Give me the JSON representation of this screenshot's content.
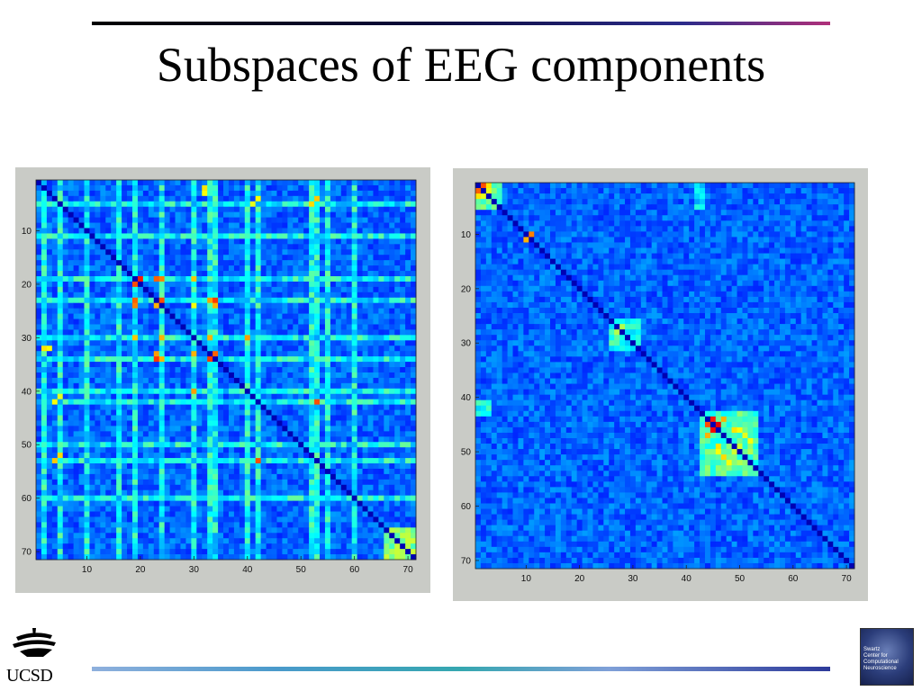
{
  "title": "Subspaces of EEG components",
  "logos": {
    "left_text": "UCSD",
    "right_lines": [
      "Swartz",
      "Center for",
      "Computational",
      "Neuroscience"
    ]
  },
  "colormap": [
    "#00008f",
    "#0000ff",
    "#0080ff",
    "#00ffff",
    "#80ff80",
    "#ffff00",
    "#ff8000",
    "#ff0000",
    "#800000"
  ],
  "chart_data": [
    {
      "type": "heatmap",
      "size": 71,
      "x_ticks": [
        10,
        20,
        30,
        40,
        50,
        60,
        70
      ],
      "y_ticks": [
        10,
        20,
        30,
        40,
        50,
        60,
        70
      ],
      "background_level": 0.22,
      "diagonal_level": 0.04,
      "blocks": [
        {
          "r0": 66,
          "r1": 71,
          "c0": 66,
          "c1": 71,
          "v": 0.5
        }
      ],
      "hotspots": [
        {
          "r": 19,
          "c": 19,
          "v": 0.9
        },
        {
          "r": 19,
          "c": 20,
          "v": 0.85
        },
        {
          "r": 20,
          "c": 19,
          "v": 0.8
        },
        {
          "r": 19,
          "c": 24,
          "v": 0.75
        },
        {
          "r": 23,
          "c": 19,
          "v": 0.78
        },
        {
          "r": 23,
          "c": 24,
          "v": 0.8
        },
        {
          "r": 24,
          "c": 23,
          "v": 0.7
        },
        {
          "r": 23,
          "c": 34,
          "v": 0.82
        },
        {
          "r": 23,
          "c": 33,
          "v": 0.72
        },
        {
          "r": 34,
          "c": 34,
          "v": 0.92
        },
        {
          "r": 34,
          "c": 33,
          "v": 0.82
        },
        {
          "r": 33,
          "c": 34,
          "v": 0.78
        },
        {
          "r": 30,
          "c": 33,
          "v": 0.7
        },
        {
          "r": 30,
          "c": 30,
          "v": 0.7
        },
        {
          "r": 30,
          "c": 24,
          "v": 0.7
        },
        {
          "r": 30,
          "c": 19,
          "v": 0.68
        },
        {
          "r": 30,
          "c": 40,
          "v": 0.72
        },
        {
          "r": 40,
          "c": 30,
          "v": 0.72
        },
        {
          "r": 42,
          "c": 53,
          "v": 0.8
        },
        {
          "r": 53,
          "c": 42,
          "v": 0.8
        },
        {
          "r": 52,
          "c": 52,
          "v": 0.7
        },
        {
          "r": 53,
          "c": 53,
          "v": 0.78
        },
        {
          "r": 53,
          "c": 4,
          "v": 0.68
        },
        {
          "r": 42,
          "c": 4,
          "v": 0.62
        },
        {
          "r": 32,
          "c": 2,
          "v": 0.65
        },
        {
          "r": 5,
          "c": 52,
          "v": 0.66
        },
        {
          "r": 5,
          "c": 41,
          "v": 0.6
        },
        {
          "r": 3,
          "c": 32,
          "v": 0.62
        },
        {
          "r": 34,
          "c": 24,
          "v": 0.7
        },
        {
          "r": 24,
          "c": 30,
          "v": 0.62
        }
      ],
      "grid_rows": [
        5,
        11,
        19,
        23,
        30,
        34,
        40,
        42,
        50,
        53,
        60
      ],
      "grid_cols": [
        2,
        5,
        10,
        16,
        19,
        24,
        30,
        33,
        34,
        40,
        42,
        52,
        53,
        55,
        60
      ],
      "grid_level": 0.4
    },
    {
      "type": "heatmap",
      "size": 71,
      "x_ticks": [
        10,
        20,
        30,
        40,
        50,
        60,
        70
      ],
      "y_ticks": [
        10,
        20,
        30,
        40,
        50,
        60,
        70
      ],
      "background_level": 0.22,
      "diagonal_level": 0.04,
      "blocks": [
        {
          "r0": 1,
          "r1": 5,
          "c0": 1,
          "c1": 5,
          "v": 0.45
        },
        {
          "r0": 26,
          "r1": 31,
          "c0": 26,
          "c1": 31,
          "v": 0.4
        },
        {
          "r0": 43,
          "r1": 54,
          "c0": 43,
          "c1": 53,
          "v": 0.45
        },
        {
          "r0": 41,
          "r1": 43,
          "c0": 1,
          "c1": 3,
          "v": 0.38
        },
        {
          "r0": 1,
          "r1": 5,
          "c0": 42,
          "c1": 43,
          "v": 0.35
        }
      ],
      "hotspots": [
        {
          "r": 1,
          "c": 1,
          "v": 0.9
        },
        {
          "r": 1,
          "c": 2,
          "v": 0.8
        },
        {
          "r": 2,
          "c": 1,
          "v": 0.78
        },
        {
          "r": 2,
          "c": 2,
          "v": 0.9
        },
        {
          "r": 1,
          "c": 3,
          "v": 0.65
        },
        {
          "r": 3,
          "c": 1,
          "v": 0.65
        },
        {
          "r": 3,
          "c": 2,
          "v": 0.6
        },
        {
          "r": 2,
          "c": 3,
          "v": 0.6
        },
        {
          "r": 10,
          "c": 11,
          "v": 0.75
        },
        {
          "r": 11,
          "c": 10,
          "v": 0.7
        },
        {
          "r": 27,
          "c": 27,
          "v": 0.6
        },
        {
          "r": 28,
          "c": 27,
          "v": 0.55
        },
        {
          "r": 44,
          "c": 44,
          "v": 0.9
        },
        {
          "r": 44,
          "c": 45,
          "v": 0.85
        },
        {
          "r": 45,
          "c": 44,
          "v": 0.8
        },
        {
          "r": 45,
          "c": 45,
          "v": 0.92
        },
        {
          "r": 45,
          "c": 46,
          "v": 0.9
        },
        {
          "r": 46,
          "c": 45,
          "v": 0.88
        },
        {
          "r": 46,
          "c": 46,
          "v": 0.85
        },
        {
          "r": 44,
          "c": 47,
          "v": 0.7
        },
        {
          "r": 47,
          "c": 44,
          "v": 0.7
        },
        {
          "r": 48,
          "c": 48,
          "v": 0.72
        },
        {
          "r": 49,
          "c": 46,
          "v": 0.65
        },
        {
          "r": 51,
          "c": 47,
          "v": 0.66
        },
        {
          "r": 52,
          "c": 48,
          "v": 0.62
        },
        {
          "r": 47,
          "c": 51,
          "v": 0.6
        },
        {
          "r": 50,
          "c": 52,
          "v": 0.55
        },
        {
          "r": 46,
          "c": 50,
          "v": 0.62
        },
        {
          "r": 49,
          "c": 50,
          "v": 0.58
        }
      ],
      "grid_rows": [],
      "grid_cols": [],
      "grid_level": 0.4
    }
  ]
}
